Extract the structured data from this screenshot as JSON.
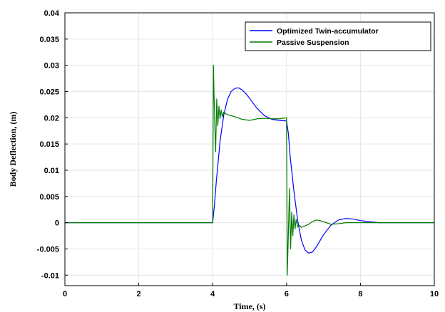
{
  "chart_data": {
    "type": "line",
    "xlabel": "Time,  (s)",
    "ylabel": "Body Deflection, (m)",
    "xlim": [
      0,
      10
    ],
    "ylim": [
      -0.012,
      0.04
    ],
    "xticks": [
      0,
      2,
      4,
      6,
      8,
      10
    ],
    "yticks": [
      -0.01,
      -0.005,
      0,
      0.005,
      0.01,
      0.015,
      0.02,
      0.025,
      0.03,
      0.035,
      0.04
    ],
    "xtick_labels": [
      "0",
      "2",
      "4",
      "6",
      "8",
      "10"
    ],
    "ytick_labels": [
      "-0.01",
      "-0.005",
      "0",
      "0.005",
      "0.01",
      "0.015",
      "0.02",
      "0.025",
      "0.03",
      "0.035",
      "0.04"
    ],
    "grid": true,
    "legend_position": "top-right",
    "series": [
      {
        "name": "Optimized Twin-accumulator",
        "color": "#0000ff",
        "x": [
          0,
          4.0,
          4.05,
          4.1,
          4.2,
          4.3,
          4.4,
          4.5,
          4.6,
          4.7,
          4.8,
          4.9,
          5.0,
          5.2,
          5.4,
          5.6,
          5.8,
          6.0,
          6.05,
          6.1,
          6.2,
          6.3,
          6.4,
          6.5,
          6.6,
          6.7,
          6.8,
          6.9,
          7.0,
          7.2,
          7.4,
          7.6,
          7.8,
          8.0,
          8.2,
          8.5,
          9.0,
          10
        ],
        "y": [
          0,
          0,
          0.0035,
          0.008,
          0.0155,
          0.0205,
          0.0235,
          0.025,
          0.0256,
          0.0257,
          0.0253,
          0.0246,
          0.0237,
          0.0218,
          0.0204,
          0.0197,
          0.0195,
          0.0194,
          0.017,
          0.0125,
          0.006,
          0.0005,
          -0.0033,
          -0.0052,
          -0.0058,
          -0.0056,
          -0.0047,
          -0.0035,
          -0.0023,
          -0.0005,
          0.0005,
          0.0008,
          0.0007,
          0.0004,
          0.0002,
          0.0,
          0.0,
          0.0
        ]
      },
      {
        "name": "Passive Suspension",
        "color": "#007a00",
        "x": [
          0,
          4.0,
          4.02,
          4.05,
          4.08,
          4.11,
          4.14,
          4.17,
          4.2,
          4.23,
          4.26,
          4.3,
          4.35,
          4.4,
          4.5,
          4.6,
          4.8,
          5.0,
          5.2,
          5.4,
          5.6,
          5.8,
          6.0,
          6.02,
          6.05,
          6.08,
          6.11,
          6.14,
          6.17,
          6.2,
          6.23,
          6.26,
          6.3,
          6.35,
          6.4,
          6.5,
          6.6,
          6.7,
          6.8,
          6.9,
          7.0,
          7.2,
          7.4,
          7.6,
          7.8,
          8.0,
          8.5,
          9.0,
          10
        ],
        "y": [
          0,
          0,
          0.03,
          0.0205,
          0.0135,
          0.0236,
          0.0185,
          0.0222,
          0.0198,
          0.0215,
          0.0202,
          0.0211,
          0.0208,
          0.0206,
          0.0204,
          0.0202,
          0.0197,
          0.0195,
          0.0198,
          0.0199,
          0.0198,
          0.0198,
          0.02,
          -0.01,
          -0.002,
          0.0065,
          -0.005,
          0.002,
          -0.0025,
          0.0015,
          -0.0012,
          0.0006,
          -0.0008,
          -0.0005,
          -0.0009,
          -0.0006,
          -0.0003,
          0.0002,
          0.0005,
          0.0004,
          0.0002,
          -0.0003,
          -0.0002,
          0.0,
          0.0,
          0.0,
          0.0,
          0.0,
          0.0
        ]
      }
    ]
  }
}
